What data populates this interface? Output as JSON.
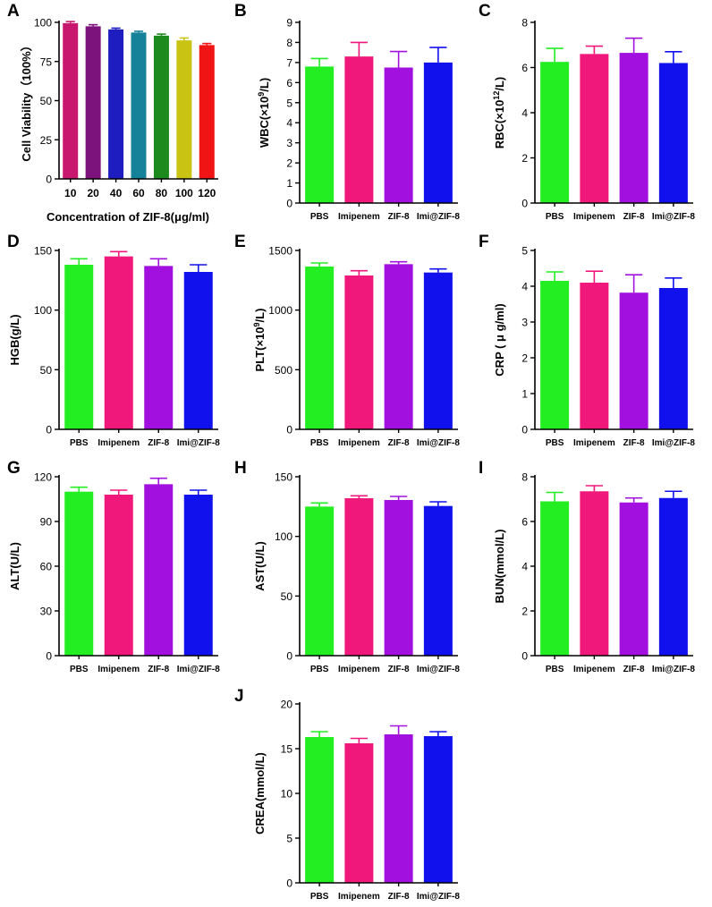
{
  "colors": {
    "pbs": "#22ee22",
    "imipenem": "#f0187a",
    "zif8": "#a210e0",
    "imizif8": "#1111ee",
    "axis": "#000000"
  },
  "panelA_colors": [
    "#c8176e",
    "#7c127c",
    "#1d1dc0",
    "#16829a",
    "#1d8a1d",
    "#c9c414",
    "#f01414"
  ],
  "chart_data": [
    {
      "id": "A",
      "type": "bar",
      "title": "",
      "letter": "A",
      "xlabel": "Concentration of ZIF-8(μg/ml)",
      "ylabel": "Cell Viability（100%）",
      "categories": [
        "10",
        "20",
        "40",
        "60",
        "80",
        "100",
        "120"
      ],
      "values": [
        99.5,
        97.5,
        95.5,
        93.5,
        91.5,
        88.5,
        85.5
      ],
      "errors": [
        1.0,
        1.0,
        0.8,
        0.8,
        1.0,
        1.5,
        1.0
      ],
      "ylim": [
        0,
        100
      ],
      "yticks": [
        0,
        25,
        50,
        75,
        100
      ]
    },
    {
      "id": "B",
      "type": "bar",
      "letter": "B",
      "ylabel_pre": "WBC(×10",
      "ylabel_sup": "9",
      "ylabel_post": "/L)",
      "categories": [
        "PBS",
        "Imipenem",
        "ZIF-8",
        "Imi@ZIF-8"
      ],
      "values": [
        6.8,
        7.3,
        6.75,
        7.0
      ],
      "errors": [
        0.4,
        0.7,
        0.8,
        0.75
      ],
      "ylim": [
        0,
        9
      ],
      "yticks": [
        0,
        1,
        2,
        3,
        4,
        5,
        6,
        7,
        8,
        9
      ]
    },
    {
      "id": "C",
      "type": "bar",
      "letter": "C",
      "ylabel_pre": "RBC(×10",
      "ylabel_sup": "12",
      "ylabel_post": "/L)",
      "categories": [
        "PBS",
        "Imipenem",
        "ZIF-8",
        "Imi@ZIF-8"
      ],
      "values": [
        6.25,
        6.6,
        6.65,
        6.2
      ],
      "errors": [
        0.6,
        0.35,
        0.65,
        0.5
      ],
      "ylim": [
        0,
        8
      ],
      "yticks": [
        0,
        2,
        4,
        6,
        8
      ]
    },
    {
      "id": "D",
      "type": "bar",
      "letter": "D",
      "ylabel": "HGB(g/L)",
      "categories": [
        "PBS",
        "Imipenem",
        "ZIF-8",
        "Imi@ZIF-8"
      ],
      "values": [
        138,
        145,
        137,
        132
      ],
      "errors": [
        5,
        4,
        6,
        6
      ],
      "ylim": [
        0,
        150
      ],
      "yticks": [
        0,
        50,
        100,
        150
      ]
    },
    {
      "id": "E",
      "type": "bar",
      "letter": "E",
      "ylabel_pre": "PLT(×10",
      "ylabel_sup": "9",
      "ylabel_post": "/L)",
      "categories": [
        "PBS",
        "Imipenem",
        "ZIF-8",
        "Imi@ZIF-8"
      ],
      "values": [
        1365,
        1290,
        1385,
        1315
      ],
      "errors": [
        30,
        40,
        20,
        30
      ],
      "ylim": [
        0,
        1500
      ],
      "yticks": [
        0,
        500,
        1000,
        1500
      ]
    },
    {
      "id": "F",
      "type": "bar",
      "letter": "F",
      "ylabel": "CRP ( μ g/ml)",
      "categories": [
        "PBS",
        "Imipenem",
        "ZIF-8",
        "Imi@ZIF-8"
      ],
      "values": [
        4.15,
        4.1,
        3.82,
        3.95
      ],
      "errors": [
        0.25,
        0.32,
        0.5,
        0.28
      ],
      "ylim": [
        0,
        5
      ],
      "yticks": [
        0,
        1,
        2,
        3,
        4,
        5
      ]
    },
    {
      "id": "G",
      "type": "bar",
      "letter": "G",
      "ylabel": "ALT(U/L)",
      "categories": [
        "PBS",
        "Imipenem",
        "ZIF-8",
        "Imi@ZIF-8"
      ],
      "values": [
        110,
        108,
        115,
        108
      ],
      "errors": [
        3,
        3,
        4,
        3
      ],
      "ylim": [
        0,
        120
      ],
      "yticks": [
        0,
        30,
        60,
        90,
        120
      ]
    },
    {
      "id": "H",
      "type": "bar",
      "letter": "H",
      "ylabel": "AST(U/L)",
      "categories": [
        "PBS",
        "Imipenem",
        "ZIF-8",
        "Imi@ZIF-8"
      ],
      "values": [
        125,
        132,
        130.5,
        125.5
      ],
      "errors": [
        3,
        2,
        3,
        3.5
      ],
      "ylim": [
        0,
        150
      ],
      "yticks": [
        0,
        50,
        100,
        150
      ]
    },
    {
      "id": "I",
      "type": "bar",
      "letter": "I",
      "ylabel": "BUN(mmol/L)",
      "categories": [
        "PBS",
        "Imipenem",
        "ZIF-8",
        "Imi@ZIF-8"
      ],
      "values": [
        6.9,
        7.35,
        6.85,
        7.05
      ],
      "errors": [
        0.4,
        0.25,
        0.2,
        0.3
      ],
      "ylim": [
        0,
        8
      ],
      "yticks": [
        0,
        2,
        4,
        6,
        8
      ]
    },
    {
      "id": "J",
      "type": "bar",
      "letter": "J",
      "ylabel": "CREA(mmol/L)",
      "categories": [
        "PBS",
        "Imipenem",
        "ZIF-8",
        "Imi@ZIF-8"
      ],
      "values": [
        16.3,
        15.6,
        16.6,
        16.4
      ],
      "errors": [
        0.6,
        0.55,
        0.95,
        0.5
      ],
      "ylim": [
        0,
        20
      ],
      "yticks": [
        0,
        5,
        10,
        15,
        20
      ]
    }
  ]
}
